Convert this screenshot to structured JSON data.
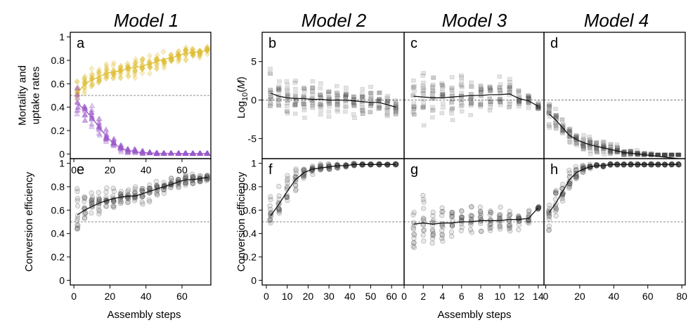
{
  "titles": [
    "Model 1",
    "Model 2",
    "Model 3",
    "Model 4"
  ],
  "xlabels": [
    "Assembly steps",
    "Assembly steps"
  ],
  "colors": {
    "uptake": "#e0bf35",
    "mortality": "#9b59c9",
    "gray": "#3a3a3a",
    "frame": "#000000",
    "refline": "#666666"
  },
  "chart_data": [
    {
      "panel": "a",
      "type": "scatter",
      "ylabel_lines": [
        "Mortality and",
        "uptake rates"
      ],
      "xlim": [
        -2,
        76
      ],
      "ylim": [
        -0.04,
        1.04
      ],
      "xticks": [
        "0",
        "20",
        "40",
        "60"
      ],
      "yticks": [
        "0",
        "0.2",
        "0.4",
        "0.6",
        "0.8",
        "1"
      ],
      "refline": 0.5,
      "series": [
        {
          "marker": "diamond",
          "color_key": "uptake",
          "x": [
            2,
            6,
            10,
            14,
            18,
            22,
            26,
            30,
            34,
            38,
            42,
            46,
            50,
            54,
            58,
            62,
            66,
            70,
            74
          ],
          "y": [
            0.52,
            0.6,
            0.63,
            0.66,
            0.69,
            0.7,
            0.71,
            0.73,
            0.74,
            0.75,
            0.77,
            0.79,
            0.81,
            0.82,
            0.84,
            0.86,
            0.87,
            0.87,
            0.89
          ],
          "spread": [
            0.15,
            0.14,
            0.13,
            0.12,
            0.12,
            0.12,
            0.11,
            0.11,
            0.11,
            0.1,
            0.1,
            0.09,
            0.09,
            0.08,
            0.08,
            0.07,
            0.07,
            0.06,
            0.05
          ]
        },
        {
          "marker": "triangle",
          "color_key": "mortality",
          "x": [
            2,
            6,
            10,
            14,
            18,
            22,
            26,
            30,
            34,
            38,
            42,
            46,
            50,
            54,
            58,
            62,
            66,
            70,
            74
          ],
          "y": [
            0.43,
            0.38,
            0.31,
            0.23,
            0.15,
            0.09,
            0.05,
            0.03,
            0.02,
            0.01,
            0.01,
            0.005,
            0.005,
            0.005,
            0.004,
            0.004,
            0.003,
            0.003,
            0.003
          ],
          "spread": [
            0.16,
            0.15,
            0.14,
            0.12,
            0.1,
            0.08,
            0.05,
            0.04,
            0.03,
            0.02,
            0.01,
            0.01,
            0.005,
            0.005,
            0.005,
            0.004,
            0.004,
            0.003,
            0.003
          ]
        }
      ]
    },
    {
      "panel": "b",
      "type": "scatter",
      "ylim": [
        -7.6,
        8.8
      ],
      "yticks": [
        "-5",
        "0",
        "5"
      ],
      "refline": 0,
      "series": [
        {
          "marker": "square",
          "color_key": "gray",
          "x": [
            2,
            6,
            10,
            14,
            18,
            22,
            26,
            30,
            34,
            38,
            42,
            46,
            50,
            54,
            58,
            62
          ],
          "y": [
            0.9,
            0.5,
            0.3,
            0.2,
            0.2,
            0.1,
            0.1,
            0.0,
            0.0,
            0.0,
            -0.1,
            -0.2,
            -0.3,
            -0.3,
            -0.6,
            -0.9
          ],
          "spread": [
            4.0,
            3.6,
            3.4,
            3.2,
            3.2,
            3.0,
            3.0,
            2.8,
            2.8,
            2.6,
            2.5,
            2.4,
            2.2,
            2.0,
            1.8,
            1.5
          ]
        }
      ]
    },
    {
      "panel": "c",
      "type": "scatter",
      "ylim": [
        -7.6,
        8.8
      ],
      "refline": 0,
      "series": [
        {
          "marker": "square",
          "color_key": "gray",
          "x": [
            1,
            2,
            3,
            4,
            5,
            6,
            7,
            8,
            9,
            10,
            11,
            12,
            13,
            14
          ],
          "y": [
            0.5,
            0.4,
            0.3,
            0.3,
            0.4,
            0.5,
            0.6,
            0.6,
            0.7,
            0.7,
            0.8,
            0.2,
            -0.1,
            -0.8
          ],
          "spread": [
            5.0,
            4.6,
            4.2,
            4.0,
            3.8,
            3.6,
            3.4,
            3.2,
            3.0,
            2.8,
            2.6,
            2.2,
            1.6,
            0.6
          ]
        }
      ]
    },
    {
      "panel": "d",
      "type": "scatter",
      "ylim": [
        -7.6,
        8.8
      ],
      "refline": 0,
      "series": [
        {
          "marker": "square",
          "color_key": "gray",
          "x": [
            2,
            6,
            10,
            14,
            18,
            22,
            26,
            30,
            34,
            38,
            42,
            46,
            50,
            54,
            58,
            62,
            66,
            70,
            74,
            78
          ],
          "y": [
            -1.8,
            -2.6,
            -3.6,
            -4.6,
            -5.1,
            -5.5,
            -5.8,
            -6.0,
            -6.2,
            -6.4,
            -6.6,
            -6.8,
            -6.9,
            -7.0,
            -7.1,
            -7.2,
            -7.3,
            -7.4,
            -7.5,
            -7.6
          ],
          "spread": [
            2.4,
            2.2,
            2.0,
            1.8,
            1.6,
            1.4,
            1.3,
            1.2,
            1.1,
            1.0,
            0.9,
            0.8,
            0.7,
            0.6,
            0.5,
            0.5,
            0.4,
            0.3,
            0.3,
            0.2
          ]
        }
      ]
    },
    {
      "panel": "e",
      "type": "scatter",
      "ylabel_lines": [
        "Conversion efficiency"
      ],
      "xlim": [
        -2,
        76
      ],
      "ylim": [
        -0.04,
        1.04
      ],
      "xticks": [
        "0",
        "20",
        "40",
        "60"
      ],
      "yticks": [
        "0",
        "0.2",
        "0.4",
        "0.6",
        "0.8",
        "1"
      ],
      "refline": 0.5,
      "series": [
        {
          "marker": "circle",
          "color_key": "gray",
          "x": [
            2,
            6,
            10,
            14,
            18,
            22,
            26,
            30,
            34,
            38,
            42,
            46,
            50,
            54,
            58,
            62,
            66,
            70,
            74
          ],
          "y": [
            0.56,
            0.6,
            0.63,
            0.66,
            0.68,
            0.7,
            0.71,
            0.72,
            0.72,
            0.74,
            0.76,
            0.78,
            0.8,
            0.82,
            0.84,
            0.86,
            0.86,
            0.87,
            0.88
          ],
          "spread": [
            0.3,
            0.2,
            0.16,
            0.15,
            0.14,
            0.13,
            0.12,
            0.12,
            0.12,
            0.11,
            0.1,
            0.1,
            0.09,
            0.08,
            0.08,
            0.07,
            0.06,
            0.05,
            0.04
          ]
        }
      ]
    },
    {
      "panel": "f",
      "type": "scatter",
      "ylabel_lines": [
        "Conversion efficiency"
      ],
      "xlim": [
        -2,
        66
      ],
      "ylim": [
        -0.04,
        1.04
      ],
      "xticks": [
        "0",
        "10",
        "20",
        "30",
        "40",
        "50",
        "60"
      ],
      "yticks": [
        "0",
        "0.2",
        "0.4",
        "0.6",
        "0.8",
        "1"
      ],
      "refline": 0.5,
      "series": [
        {
          "marker": "circle",
          "color_key": "gray",
          "x": [
            2,
            6,
            10,
            14,
            18,
            22,
            26,
            30,
            34,
            38,
            42,
            46,
            50,
            54,
            58,
            62
          ],
          "y": [
            0.55,
            0.65,
            0.76,
            0.86,
            0.92,
            0.95,
            0.96,
            0.97,
            0.98,
            0.98,
            0.99,
            0.99,
            0.99,
            0.99,
            0.99,
            0.99
          ],
          "spread": [
            0.25,
            0.22,
            0.18,
            0.14,
            0.1,
            0.06,
            0.05,
            0.04,
            0.03,
            0.02,
            0.02,
            0.01,
            0.01,
            0.01,
            0.01,
            0.01
          ]
        }
      ]
    },
    {
      "panel": "g",
      "type": "scatter",
      "xlim": [
        0,
        14.6
      ],
      "ylim": [
        -0.04,
        1.04
      ],
      "xticks": [
        "0",
        "2",
        "4",
        "6",
        "8",
        "10",
        "12",
        "14"
      ],
      "refline": 0.5,
      "series": [
        {
          "marker": "circle",
          "color_key": "gray",
          "x": [
            1,
            2,
            3,
            4,
            5,
            6,
            7,
            8,
            9,
            10,
            11,
            12,
            13,
            14
          ],
          "y": [
            0.48,
            0.49,
            0.48,
            0.49,
            0.49,
            0.5,
            0.5,
            0.51,
            0.51,
            0.51,
            0.52,
            0.52,
            0.53,
            0.62
          ],
          "spread": [
            0.3,
            0.28,
            0.26,
            0.24,
            0.22,
            0.2,
            0.18,
            0.17,
            0.16,
            0.15,
            0.14,
            0.12,
            0.08,
            0.02
          ]
        }
      ]
    },
    {
      "panel": "h",
      "type": "scatter",
      "xlim": [
        -1,
        82
      ],
      "ylim": [
        -0.04,
        1.04
      ],
      "xticks": [
        "0",
        "20",
        "40",
        "60",
        "80"
      ],
      "refline": 0.5,
      "series": [
        {
          "marker": "circle",
          "color_key": "gray",
          "x": [
            2,
            6,
            10,
            14,
            18,
            22,
            26,
            30,
            34,
            38,
            42,
            46,
            50,
            54,
            58,
            62,
            66,
            70,
            74,
            78
          ],
          "y": [
            0.58,
            0.66,
            0.76,
            0.86,
            0.92,
            0.95,
            0.97,
            0.98,
            0.98,
            0.99,
            0.99,
            0.99,
            0.99,
            0.99,
            0.99,
            0.99,
            0.99,
            0.99,
            0.99,
            0.99
          ],
          "spread": [
            0.22,
            0.2,
            0.16,
            0.12,
            0.08,
            0.05,
            0.03,
            0.02,
            0.02,
            0.01,
            0.01,
            0.01,
            0.01,
            0.01,
            0.01,
            0.01,
            0.01,
            0.01,
            0.01,
            0.01
          ]
        }
      ]
    }
  ]
}
